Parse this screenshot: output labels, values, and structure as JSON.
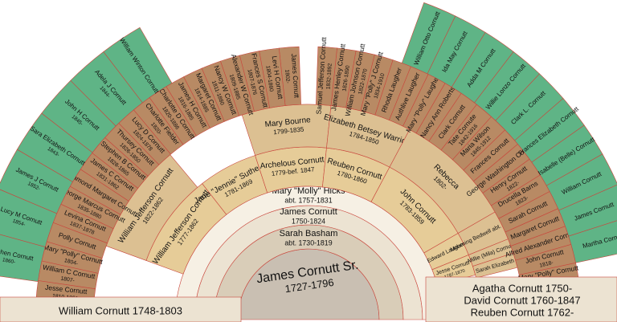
{
  "root": {
    "name": "James Cornutt Sr.",
    "dates": "1727-1796"
  },
  "ring1": {
    "name": "Sarah Basham",
    "dates": "abt. 1730-1819"
  },
  "ring2": {
    "name": "James Cornutt",
    "dates": "1750-1824"
  },
  "ring3": {
    "name": "Mary \"Molly\" Hicks",
    "dates": "abt. 1757-1831"
  },
  "bottom_left": [
    "William Cornutt 1748-1803"
  ],
  "bottom_right": [
    "Agatha Cornutt 1750-",
    "David Cornutt 1760-1847",
    "Reuben Cornutt 1762-"
  ],
  "ring4": [
    {
      "name": "William Jefferson Cornutt",
      "dates": "1777-1862"
    },
    {
      "name": "Jane \"Jennie\" Sutherland",
      "dates": "1781-1869"
    },
    {
      "name": "Archelous Cornutt",
      "dates": "1779-bef. 1847"
    },
    {
      "name": "Reuben Cornutt",
      "dates": "1780-1860"
    },
    {
      "name": "John Cornutt",
      "dates": "1783-1859"
    },
    {
      "name": "Edward Laugher",
      "dates": ""
    },
    {
      "name": "Jesse Cornutt",
      "dates": "1787-1870"
    }
  ],
  "ring5": [
    {
      "name": "William Jefferson Cornutt",
      "dates": "1822-1862"
    },
    {
      "name": "Mary Bourne",
      "dates": "1799-1835"
    },
    {
      "name": "Elizabeth Betsey Warrick",
      "dates": "1784-1850"
    },
    {
      "name": "Rebecca",
      "dates": "1802-"
    },
    {
      "name": "Mourning Bedwell abt. 1793-",
      "dates": ""
    },
    {
      "name": "Millie (Mila) Cornutt",
      "dates": ""
    },
    {
      "name": "Sarah Elizabeth",
      "dates": ""
    }
  ],
  "ring6_left": [
    {
      "name": "James Cornutt",
      "dates": "1802-"
    },
    {
      "name": "Levi H Cornutt",
      "dates": "1804-1860"
    },
    {
      "name": "Frances S Cornutt",
      "dates": "1807-1876"
    },
    {
      "name": "Alexander W Cornutt",
      "dates": "1809-1885"
    },
    {
      "name": "Nancy W Cornutt",
      "dates": "1811-1880"
    },
    {
      "name": "Margaret Cornutt",
      "dates": "1814-1885"
    },
    {
      "name": "James H Cornutt",
      "dates": "1816-1885"
    },
    {
      "name": "Charlotte D Cornutt",
      "dates": "1820-1886"
    },
    {
      "name": "Charlotte Fielder",
      "dates": "1820-"
    },
    {
      "name": "Lucy D Cornutt",
      "dates": "1824-1878"
    },
    {
      "name": "Thursey Cornutt",
      "dates": "1826-1850"
    },
    {
      "name": "Stephen B Cornutt",
      "dates": "1828-1865"
    },
    {
      "name": "James C Cornutt",
      "dates": "1831-1862"
    },
    {
      "name": "Rosamond Margaret Cornutt",
      "dates": ""
    },
    {
      "name": "George Marcus Cornutt",
      "dates": "1835-1880"
    },
    {
      "name": "Levina Cornutt",
      "dates": "1837-1878"
    },
    {
      "name": "Polly Cornutt",
      "dates": ""
    },
    {
      "name": "Mary \"Polly\" Cornutt",
      "dates": "1804-"
    },
    {
      "name": "William C Cornutt",
      "dates": "1807-"
    },
    {
      "name": "Jesse Cornutt",
      "dates": "1810-1861"
    }
  ],
  "ring6_right": [
    {
      "name": "Lewis Cornutt",
      "dates": "1812-"
    },
    {
      "name": "Mary \"Polly\" Cornutt",
      "dates": "1816-"
    },
    {
      "name": "John Cornutt",
      "dates": "1818-"
    },
    {
      "name": "Alfred Alexander Cornutt",
      "dates": ""
    },
    {
      "name": "Margaret Cornutt",
      "dates": ""
    },
    {
      "name": "Sarah Cornutt",
      "dates": ""
    },
    {
      "name": "Drucella Barns",
      "dates": "1823-"
    },
    {
      "name": "Henry Cornutt",
      "dates": "1822-"
    },
    {
      "name": "George Washington Cornutt",
      "dates": ""
    },
    {
      "name": "Frances Cornutt",
      "dates": ""
    },
    {
      "name": "Maria Wilson",
      "dates": "1845-1912"
    },
    {
      "name": "Tate Cornute",
      "dates": "1842-1916"
    },
    {
      "name": "Clark Cornutt",
      "dates": ""
    },
    {
      "name": "Nancy Ann Roberts",
      "dates": ""
    },
    {
      "name": "Mary \"Polly\" Laugher",
      "dates": ""
    },
    {
      "name": "Authlive Laugher",
      "dates": ""
    },
    {
      "name": "Rhoda Laugher",
      "dates": ""
    },
    {
      "name": "Mary \"Polly\" J Cornutt",
      "dates": "1834-1910"
    },
    {
      "name": "William Johnson Cornutt",
      "dates": "1822-1870"
    },
    {
      "name": "James Henley Cornutt",
      "dates": "1826-1890"
    },
    {
      "name": "Samuel Jefferson Cornutt",
      "dates": "1832-1892"
    }
  ],
  "ring7_left": [
    {
      "name": "William Winton Cornutt",
      "dates": ""
    },
    {
      "name": "Adela J Cornutt",
      "dates": "1844-"
    },
    {
      "name": "John H Cornutt",
      "dates": "1845-"
    },
    {
      "name": "Sara Elizabeth Cornutt",
      "dates": "1843-"
    },
    {
      "name": "James J Cornutt",
      "dates": "1852-"
    },
    {
      "name": "Lucy M Cornutt",
      "dates": "1854-"
    },
    {
      "name": "Stephen Cornutt",
      "dates": "1860-"
    }
  ],
  "ring7_right": [
    {
      "name": "Martha Cornutt",
      "dates": ""
    },
    {
      "name": "James Cornutt",
      "dates": ""
    },
    {
      "name": "William Cornutt",
      "dates": ""
    },
    {
      "name": "Isabelle (Belle) Cornutt",
      "dates": ""
    },
    {
      "name": "Frances Elizabeth Cornutt",
      "dates": ""
    },
    {
      "name": "Clark L. Cornutt",
      "dates": ""
    },
    {
      "name": "Willie Lonzo Cornutt",
      "dates": ""
    },
    {
      "name": "Adda M Cornutt",
      "dates": ""
    },
    {
      "name": "Ida May Cornutt",
      "dates": ""
    },
    {
      "name": "William Otto Cornutt",
      "dates": ""
    }
  ],
  "colors": {
    "core": "#c9bfb2",
    "ring1": "#d9cdb8",
    "ring2": "#ece3d2",
    "ring3": "#f6f0e4",
    "ring4": "#e6cc98",
    "ring5": "#dcc092",
    "outer": "#b88a64",
    "green": "#5fb486",
    "stroke": "#c9463c",
    "bottom_bar": "#ece3d2"
  }
}
